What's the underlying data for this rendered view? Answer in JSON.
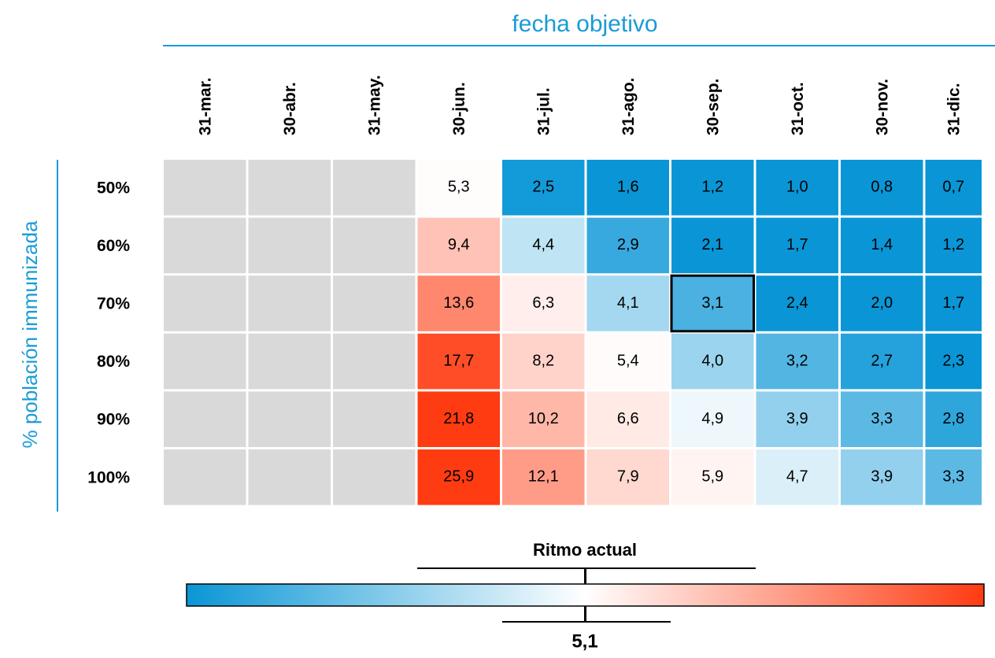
{
  "chart_data": {
    "type": "heatmap",
    "title": "fecha objetivo",
    "ylabel": "% población immunizada",
    "categories": [
      "31-mar.",
      "30-abr.",
      "31-may.",
      "30-jun.",
      "31-jul.",
      "31-ago.",
      "30-sep.",
      "31-oct.",
      "30-nov.",
      "31-dic."
    ],
    "rows": [
      "50%",
      "60%",
      "70%",
      "80%",
      "90%",
      "100%"
    ],
    "values": [
      [
        null,
        null,
        null,
        5.3,
        2.5,
        1.6,
        1.2,
        1.0,
        0.8,
        0.7
      ],
      [
        null,
        null,
        null,
        9.4,
        4.4,
        2.9,
        2.1,
        1.7,
        1.4,
        1.2
      ],
      [
        null,
        null,
        null,
        13.6,
        6.3,
        4.1,
        3.1,
        2.4,
        2.0,
        1.7
      ],
      [
        null,
        null,
        null,
        17.7,
        8.2,
        5.4,
        4.0,
        3.2,
        2.7,
        2.3
      ],
      [
        null,
        null,
        null,
        21.8,
        10.2,
        6.6,
        4.9,
        3.9,
        3.3,
        2.8
      ],
      [
        null,
        null,
        null,
        25.9,
        12.1,
        7.9,
        5.9,
        4.7,
        3.9,
        3.3
      ]
    ],
    "value_labels": [
      [
        null,
        null,
        null,
        "5,3",
        "2,5",
        "1,6",
        "1,2",
        "1,0",
        "0,8",
        "0,7"
      ],
      [
        null,
        null,
        null,
        "9,4",
        "4,4",
        "2,9",
        "2,1",
        "1,7",
        "1,4",
        "1,2"
      ],
      [
        null,
        null,
        null,
        "13,6",
        "6,3",
        "4,1",
        "3,1",
        "2,4",
        "2,0",
        "1,7"
      ],
      [
        null,
        null,
        null,
        "17,7",
        "8,2",
        "5,4",
        "4,0",
        "3,2",
        "2,7",
        "2,3"
      ],
      [
        null,
        null,
        null,
        "21,8",
        "10,2",
        "6,6",
        "4,9",
        "3,9",
        "3,3",
        "2,8"
      ],
      [
        null,
        null,
        null,
        "25,9",
        "12,1",
        "7,9",
        "5,9",
        "4,7",
        "3,9",
        "3,3"
      ]
    ],
    "missing_color": "#d9d9d9",
    "highlight": {
      "row": 2,
      "col": 6
    },
    "colorbar": {
      "label": "Ritmo actual",
      "value": 5.1,
      "value_label": "5,1",
      "colors": [
        "#0a96d6",
        "#ffffff",
        "#ff3b12"
      ],
      "clim": [
        2.4,
        19
      ]
    }
  }
}
